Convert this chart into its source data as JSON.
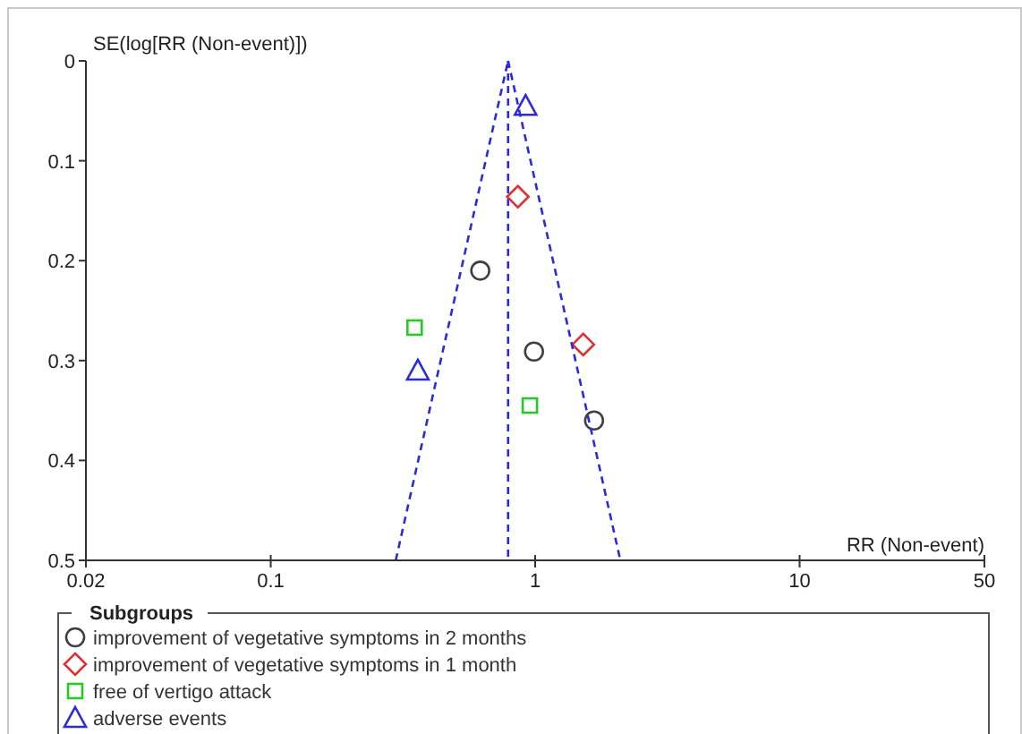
{
  "chart_data": {
    "type": "scatter",
    "xlabel": "RR (Non-event)",
    "ylabel": "SE(log[RR (Non-event)])",
    "legend_title": "Subgroups",
    "legend": "bottom",
    "log": "x",
    "xlim": [
      0.02,
      50
    ],
    "xticks": [
      0.02,
      0.1,
      1,
      10,
      50
    ],
    "ylim": [
      0.5,
      0
    ],
    "yticks": [
      0,
      0.1,
      0.2,
      0.3,
      0.4,
      0.5
    ],
    "ref_lines": [
      {
        "axis": "x",
        "value": 0.79,
        "color": "#2a2ae0",
        "line_style": "dashed"
      }
    ],
    "series": [
      {
        "name": "improvement of vegetative symptoms in 2 months",
        "color": "#404040",
        "marker": "circle",
        "x": [
          0.62,
          0.99,
          1.67
        ],
        "values": [
          0.21,
          0.291,
          0.36
        ]
      },
      {
        "name": "improvement of vegetative symptoms in 1 month",
        "color": "#e03030",
        "marker": "diamond",
        "x": [
          0.86,
          1.52
        ],
        "values": [
          0.136,
          0.284
        ]
      },
      {
        "name": "free of vertigo attack",
        "color": "#22cc22",
        "marker": "square",
        "x": [
          0.35,
          0.955
        ],
        "values": [
          0.267,
          0.345
        ]
      },
      {
        "name": "adverse events",
        "color": "#2a2ae0",
        "marker": "triangle",
        "x": [
          0.92,
          0.36
        ],
        "values": [
          0.045,
          0.31
        ]
      },
      {
        "type": "line",
        "color": "#2a2ae0",
        "line_style": "dashed",
        "marker": "none",
        "x": [
          0.297,
          0.79
        ],
        "values": [
          0.5,
          0
        ]
      },
      {
        "type": "line",
        "color": "#2a2ae0",
        "line_style": "dashed",
        "marker": "none",
        "x": [
          0.79,
          2.1
        ],
        "values": [
          0,
          0.5
        ]
      }
    ]
  }
}
